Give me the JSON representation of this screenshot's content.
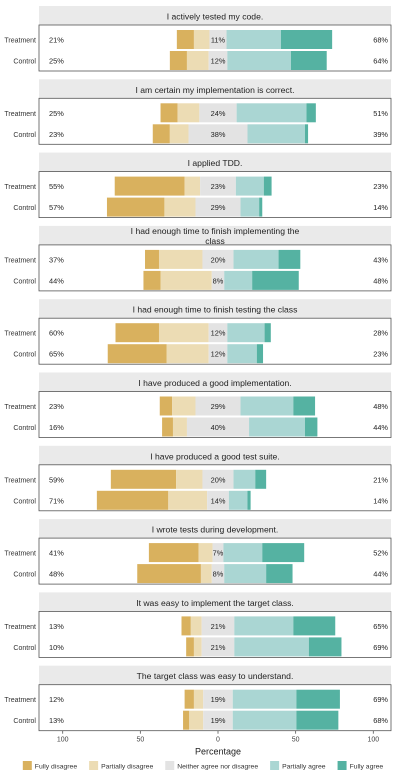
{
  "chart_data": {
    "type": "bar",
    "subtype": "diverging-stacked-likert",
    "xlabel": "Percentage",
    "xlim": [
      -100,
      100
    ],
    "x_tick_labels": [
      "100",
      "50",
      "0",
      "50",
      "100"
    ],
    "groups": [
      "Treatment",
      "Control"
    ],
    "legend_position": "bottom",
    "levels": [
      {
        "name": "Fully disagree",
        "color": "#d9b15e"
      },
      {
        "name": "Partially disagree",
        "color": "#ecdcb4"
      },
      {
        "name": "Neither agree nor disagree",
        "color": "#e3e3e3"
      },
      {
        "name": "Partially agree",
        "color": "#aad6d3"
      },
      {
        "name": "Fully agree",
        "color": "#55b2a2"
      }
    ],
    "panels": [
      {
        "title": "I actively tested my code.",
        "rows": [
          {
            "group": "Treatment",
            "values": [
              11,
              10,
              11,
              35,
              33
            ],
            "left_label": "21%",
            "center_label": "11%",
            "right_label": "68%"
          },
          {
            "group": "Control",
            "values": [
              11,
              14,
              12,
              41,
              23
            ],
            "left_label": "25%",
            "center_label": "12%",
            "right_label": "64%"
          }
        ]
      },
      {
        "title": "I am certain my implementation is correct.",
        "rows": [
          {
            "group": "Treatment",
            "values": [
              11,
              14,
              24,
              45,
              6
            ],
            "left_label": "25%",
            "center_label": "24%",
            "right_label": "51%"
          },
          {
            "group": "Control",
            "values": [
              11,
              12,
              38,
              37,
              2
            ],
            "left_label": "23%",
            "center_label": "38%",
            "right_label": "39%"
          }
        ]
      },
      {
        "title": "I applied TDD.",
        "rows": [
          {
            "group": "Treatment",
            "values": [
              45,
              10,
              23,
              18,
              5
            ],
            "left_label": "55%",
            "center_label": "23%",
            "right_label": "23%"
          },
          {
            "group": "Control",
            "values": [
              37,
              20,
              29,
              12,
              2
            ],
            "left_label": "57%",
            "center_label": "29%",
            "right_label": "14%"
          }
        ]
      },
      {
        "title": "I had enough time to finish implementing the class",
        "rows": [
          {
            "group": "Treatment",
            "values": [
              9,
              28,
              20,
              29,
              14
            ],
            "left_label": "37%",
            "center_label": "20%",
            "right_label": "43%"
          },
          {
            "group": "Control",
            "values": [
              11,
              33,
              8,
              18,
              30
            ],
            "left_label": "44%",
            "center_label": "8%",
            "right_label": "48%"
          }
        ]
      },
      {
        "title": "I had enough time to finish testing the class",
        "rows": [
          {
            "group": "Treatment",
            "values": [
              28,
              32,
              12,
              24,
              4
            ],
            "left_label": "60%",
            "center_label": "12%",
            "right_label": "28%"
          },
          {
            "group": "Control",
            "values": [
              38,
              27,
              12,
              19,
              4
            ],
            "left_label": "65%",
            "center_label": "12%",
            "right_label": "23%"
          }
        ]
      },
      {
        "title": "I have produced a good implementation.",
        "rows": [
          {
            "group": "Treatment",
            "values": [
              8,
              15,
              29,
              34,
              14
            ],
            "left_label": "23%",
            "center_label": "29%",
            "right_label": "48%"
          },
          {
            "group": "Control",
            "values": [
              7,
              9,
              40,
              36,
              8
            ],
            "left_label": "16%",
            "center_label": "40%",
            "right_label": "44%"
          }
        ]
      },
      {
        "title": "I have produced a good test suite.",
        "rows": [
          {
            "group": "Treatment",
            "values": [
              42,
              17,
              20,
              14,
              7
            ],
            "left_label": "59%",
            "center_label": "20%",
            "right_label": "21%"
          },
          {
            "group": "Control",
            "values": [
              46,
              25,
              14,
              12,
              2
            ],
            "left_label": "71%",
            "center_label": "14%",
            "right_label": "14%"
          }
        ]
      },
      {
        "title": "I wrote tests during development.",
        "rows": [
          {
            "group": "Treatment",
            "values": [
              32,
              9,
              7,
              25,
              27
            ],
            "left_label": "41%",
            "center_label": "7%",
            "right_label": "52%"
          },
          {
            "group": "Control",
            "values": [
              41,
              7,
              8,
              27,
              17
            ],
            "left_label": "48%",
            "center_label": "8%",
            "right_label": "44%"
          }
        ]
      },
      {
        "title": "It was easy to implement the target class.",
        "rows": [
          {
            "group": "Treatment",
            "values": [
              6,
              7,
              21,
              38,
              27
            ],
            "left_label": "13%",
            "center_label": "21%",
            "right_label": "65%"
          },
          {
            "group": "Control",
            "values": [
              5,
              5,
              21,
              48,
              21
            ],
            "left_label": "10%",
            "center_label": "21%",
            "right_label": "69%"
          }
        ]
      },
      {
        "title": "The target class was easy to understand.",
        "rows": [
          {
            "group": "Treatment",
            "values": [
              6,
              6,
              19,
              41,
              28
            ],
            "left_label": "12%",
            "center_label": "19%",
            "right_label": "69%"
          },
          {
            "group": "Control",
            "values": [
              4,
              9,
              19,
              41,
              27
            ],
            "left_label": "13%",
            "center_label": "19%",
            "right_label": "68%"
          }
        ]
      }
    ]
  }
}
